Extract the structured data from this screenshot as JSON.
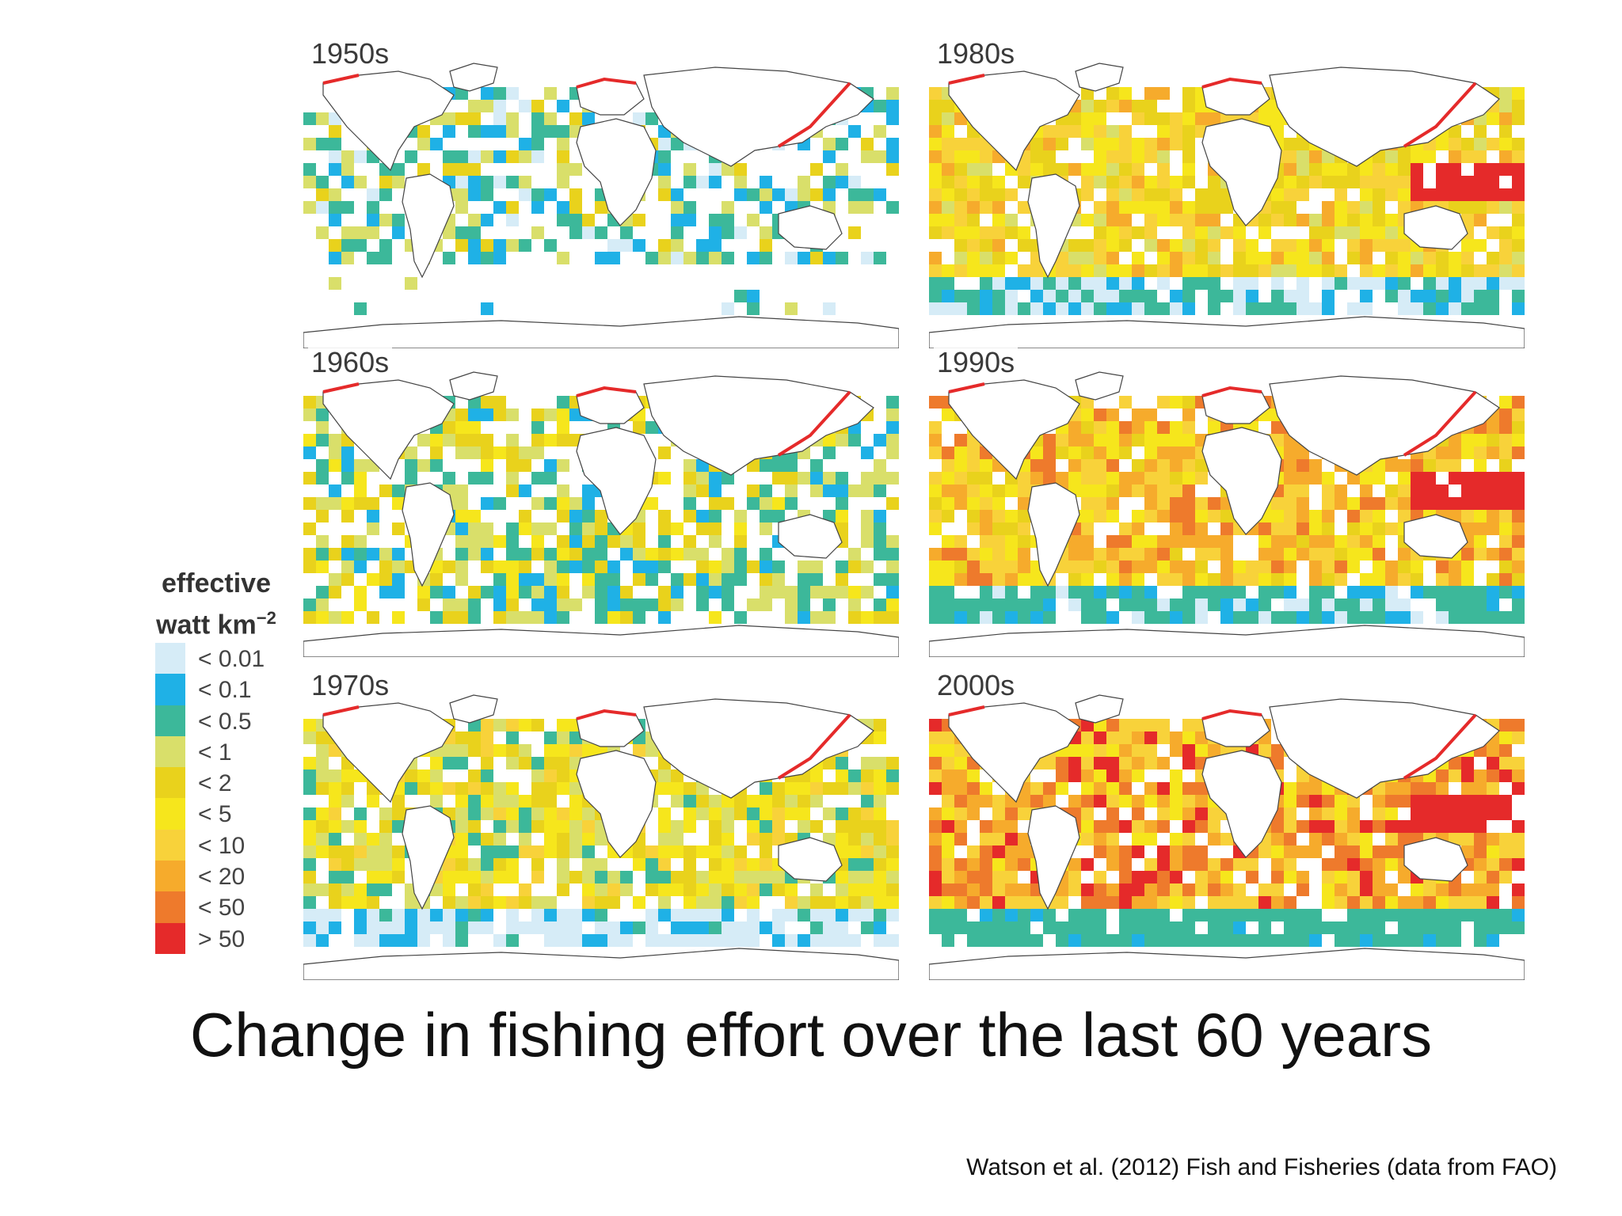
{
  "title": "Change in fishing effort over the last 60 years",
  "citation": "Watson et al. (2012) Fish and Fisheries (data from FAO)",
  "legend": {
    "title_line1": "effective",
    "title_line2": "watt km",
    "title_superscript": "−2",
    "items": [
      {
        "label": "< 0.01",
        "color": "#d6ecf7"
      },
      {
        "label": "< 0.1",
        "color": "#1fb1e6"
      },
      {
        "label": "< 0.5",
        "color": "#3cb89a"
      },
      {
        "label": "< 1",
        "color": "#d9df6a"
      },
      {
        "label": "< 2",
        "color": "#e9d21c"
      },
      {
        "label": "< 5",
        "color": "#f6e61c"
      },
      {
        "label": "< 10",
        "color": "#f8d23a"
      },
      {
        "label": "< 20",
        "color": "#f6ab2c"
      },
      {
        "label": "< 50",
        "color": "#ee7a2c"
      },
      {
        "label": "> 50",
        "color": "#e52a2a"
      }
    ]
  },
  "panels": [
    {
      "decade": "1950s",
      "dominant_level": 2
    },
    {
      "decade": "1960s",
      "dominant_level": 3
    },
    {
      "decade": "1970s",
      "dominant_level": 4
    },
    {
      "decade": "1980s",
      "dominant_level": 5
    },
    {
      "decade": "1990s",
      "dominant_level": 6
    },
    {
      "decade": "2000s",
      "dominant_level": 7
    }
  ]
}
